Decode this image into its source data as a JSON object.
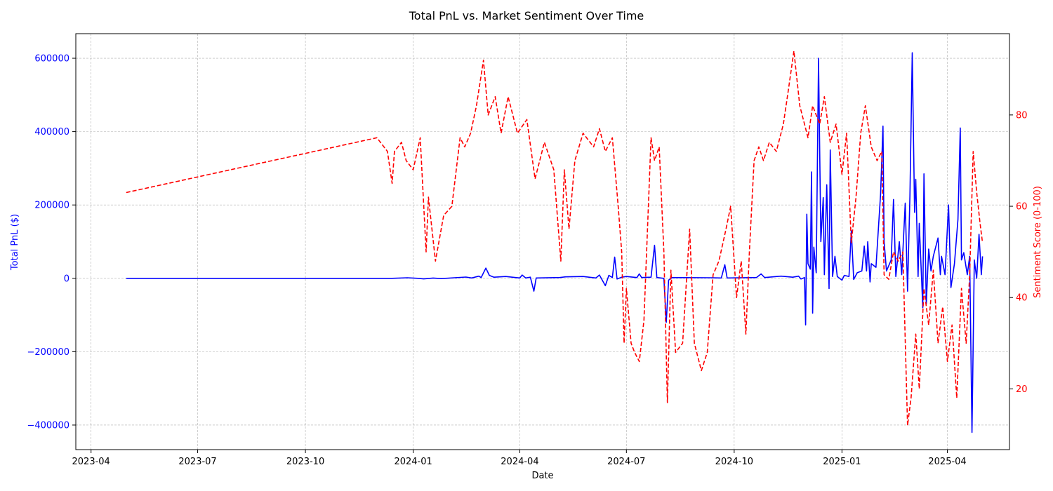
{
  "chart_data": {
    "type": "line",
    "title": "Total PnL vs. Market Sentiment Over Time",
    "xlabel": "Date",
    "ylabel_left": "Total PnL ($)",
    "ylabel_right": "Sentiment Score (0-100)",
    "xlim": [
      "2023-03-19",
      "2025-05-24"
    ],
    "ylim_left": [
      -467000,
      667000
    ],
    "ylim_right": [
      6.7,
      97.8
    ],
    "grid": true,
    "x_ticks": [
      {
        "date": "2023-04-01",
        "label": "2023-04"
      },
      {
        "date": "2023-07-01",
        "label": "2023-07"
      },
      {
        "date": "2023-10-01",
        "label": "2023-10"
      },
      {
        "date": "2024-01-01",
        "label": "2024-01"
      },
      {
        "date": "2024-04-01",
        "label": "2024-04"
      },
      {
        "date": "2024-07-01",
        "label": "2024-07"
      },
      {
        "date": "2024-10-01",
        "label": "2024-10"
      },
      {
        "date": "2025-01-01",
        "label": "2025-01"
      },
      {
        "date": "2025-04-01",
        "label": "2025-04"
      }
    ],
    "y_ticks_left": [
      {
        "value": 600000,
        "label": "600000"
      },
      {
        "value": 400000,
        "label": "400000"
      },
      {
        "value": 200000,
        "label": "200000"
      },
      {
        "value": 0,
        "label": "0"
      },
      {
        "value": -200000,
        "label": "−200000"
      },
      {
        "value": -400000,
        "label": "−400000"
      }
    ],
    "y_ticks_right": [
      {
        "value": 80,
        "label": "80"
      },
      {
        "value": 60,
        "label": "60"
      },
      {
        "value": 40,
        "label": "40"
      },
      {
        "value": 20,
        "label": "20"
      }
    ],
    "series": [
      {
        "axis": "left",
        "color": "#0000ff",
        "style": "solid",
        "points": [
          [
            "2023-05-01",
            0
          ],
          [
            "2023-12-14",
            0
          ],
          [
            "2023-12-27",
            1500
          ],
          [
            "2024-01-05",
            0
          ],
          [
            "2024-01-10",
            -1500
          ],
          [
            "2024-01-18",
            800
          ],
          [
            "2024-01-25",
            -800
          ],
          [
            "2024-02-05",
            1500
          ],
          [
            "2024-02-15",
            3500
          ],
          [
            "2024-02-20",
            1000
          ],
          [
            "2024-02-26",
            6000
          ],
          [
            "2024-02-28",
            2000
          ],
          [
            "2024-03-03",
            28000
          ],
          [
            "2024-03-06",
            8000
          ],
          [
            "2024-03-10",
            3000
          ],
          [
            "2024-03-20",
            5000
          ],
          [
            "2024-04-01",
            1000
          ],
          [
            "2024-04-03",
            9000
          ],
          [
            "2024-04-06",
            1000
          ],
          [
            "2024-04-10",
            3000
          ],
          [
            "2024-04-13",
            -35000
          ],
          [
            "2024-04-15",
            1000
          ],
          [
            "2024-05-05",
            2000
          ],
          [
            "2024-05-10",
            4000
          ],
          [
            "2024-05-25",
            5000
          ],
          [
            "2024-06-05",
            1000
          ],
          [
            "2024-06-08",
            9000
          ],
          [
            "2024-06-13",
            -20000
          ],
          [
            "2024-06-16",
            8000
          ],
          [
            "2024-06-19",
            2000
          ],
          [
            "2024-06-21",
            58000
          ],
          [
            "2024-06-23",
            -2000
          ],
          [
            "2024-06-27",
            3000
          ],
          [
            "2024-07-01",
            5000
          ],
          [
            "2024-07-10",
            2000
          ],
          [
            "2024-07-12",
            12000
          ],
          [
            "2024-07-14",
            2000
          ],
          [
            "2024-07-22",
            3000
          ],
          [
            "2024-07-25",
            90000
          ],
          [
            "2024-07-27",
            2000
          ],
          [
            "2024-08-02",
            0
          ],
          [
            "2024-08-04",
            -120000
          ],
          [
            "2024-08-06",
            -5000
          ],
          [
            "2024-08-09",
            2000
          ],
          [
            "2024-09-10",
            1500
          ],
          [
            "2024-09-20",
            1000
          ],
          [
            "2024-09-23",
            37000
          ],
          [
            "2024-09-25",
            1000
          ],
          [
            "2024-10-20",
            2000
          ],
          [
            "2024-10-24",
            12000
          ],
          [
            "2024-10-27",
            2000
          ],
          [
            "2024-11-10",
            6000
          ],
          [
            "2024-11-20",
            3000
          ],
          [
            "2024-11-25",
            6000
          ],
          [
            "2024-11-27",
            -2000
          ],
          [
            "2024-11-30",
            2000
          ],
          [
            "2024-12-01",
            -127000
          ],
          [
            "2024-12-02",
            175000
          ],
          [
            "2024-12-03",
            40000
          ],
          [
            "2024-12-05",
            25000
          ],
          [
            "2024-12-06",
            290000
          ],
          [
            "2024-12-07",
            -95000
          ],
          [
            "2024-12-08",
            85000
          ],
          [
            "2024-12-10",
            15000
          ],
          [
            "2024-12-12",
            600000
          ],
          [
            "2024-12-14",
            100000
          ],
          [
            "2024-12-16",
            220000
          ],
          [
            "2024-12-17",
            10000
          ],
          [
            "2024-12-19",
            255000
          ],
          [
            "2024-12-21",
            -28000
          ],
          [
            "2024-12-22",
            350000
          ],
          [
            "2024-12-24",
            5000
          ],
          [
            "2024-12-26",
            60000
          ],
          [
            "2024-12-28",
            5000
          ],
          [
            "2025-01-01",
            -5000
          ],
          [
            "2025-01-03",
            8000
          ],
          [
            "2025-01-07",
            5000
          ],
          [
            "2025-01-09",
            130000
          ],
          [
            "2025-01-11",
            -3000
          ],
          [
            "2025-01-14",
            15000
          ],
          [
            "2025-01-18",
            20000
          ],
          [
            "2025-01-20",
            88000
          ],
          [
            "2025-01-22",
            20000
          ],
          [
            "2025-01-23",
            100000
          ],
          [
            "2025-01-25",
            -10000
          ],
          [
            "2025-01-26",
            40000
          ],
          [
            "2025-01-30",
            30000
          ],
          [
            "2025-02-03",
            230000
          ],
          [
            "2025-02-05",
            415000
          ],
          [
            "2025-02-06",
            100000
          ],
          [
            "2025-02-08",
            20000
          ],
          [
            "2025-02-12",
            50000
          ],
          [
            "2025-02-14",
            215000
          ],
          [
            "2025-02-16",
            5000
          ],
          [
            "2025-02-19",
            100000
          ],
          [
            "2025-02-21",
            10000
          ],
          [
            "2025-02-24",
            205000
          ],
          [
            "2025-02-26",
            -35000
          ],
          [
            "2025-02-28",
            225000
          ],
          [
            "2025-03-02",
            615000
          ],
          [
            "2025-03-04",
            180000
          ],
          [
            "2025-03-05",
            270000
          ],
          [
            "2025-03-07",
            5000
          ],
          [
            "2025-03-08",
            150000
          ],
          [
            "2025-03-11",
            -80000
          ],
          [
            "2025-03-12",
            285000
          ],
          [
            "2025-03-14",
            -70000
          ],
          [
            "2025-03-16",
            80000
          ],
          [
            "2025-03-18",
            20000
          ],
          [
            "2025-03-20",
            60000
          ],
          [
            "2025-03-24",
            110000
          ],
          [
            "2025-03-26",
            10000
          ],
          [
            "2025-03-27",
            60000
          ],
          [
            "2025-03-30",
            10000
          ],
          [
            "2025-04-02",
            200000
          ],
          [
            "2025-04-04",
            -25000
          ],
          [
            "2025-04-07",
            40000
          ],
          [
            "2025-04-10",
            160000
          ],
          [
            "2025-04-12",
            410000
          ],
          [
            "2025-04-13",
            50000
          ],
          [
            "2025-04-15",
            70000
          ],
          [
            "2025-04-18",
            10000
          ],
          [
            "2025-04-20",
            60000
          ],
          [
            "2025-04-22",
            -420000
          ],
          [
            "2025-04-24",
            50000
          ],
          [
            "2025-04-26",
            0
          ],
          [
            "2025-04-28",
            120000
          ],
          [
            "2025-04-30",
            10000
          ],
          [
            "2025-05-01",
            60000
          ]
        ]
      },
      {
        "axis": "right",
        "color": "#ff0000",
        "style": "dashed",
        "points": [
          [
            "2023-05-01",
            63
          ],
          [
            "2023-12-01",
            75
          ],
          [
            "2023-12-10",
            72
          ],
          [
            "2023-12-14",
            65
          ],
          [
            "2023-12-16",
            72
          ],
          [
            "2023-12-22",
            74
          ],
          [
            "2023-12-26",
            70
          ],
          [
            "2024-01-01",
            68
          ],
          [
            "2024-01-07",
            75
          ],
          [
            "2024-01-12",
            50
          ],
          [
            "2024-01-14",
            62
          ],
          [
            "2024-01-20",
            48
          ],
          [
            "2024-01-27",
            58
          ],
          [
            "2024-02-03",
            60
          ],
          [
            "2024-02-10",
            75
          ],
          [
            "2024-02-14",
            73
          ],
          [
            "2024-02-19",
            76
          ],
          [
            "2024-02-24",
            82
          ],
          [
            "2024-03-01",
            92
          ],
          [
            "2024-03-05",
            80
          ],
          [
            "2024-03-11",
            84
          ],
          [
            "2024-03-16",
            76
          ],
          [
            "2024-03-22",
            84
          ],
          [
            "2024-03-30",
            76
          ],
          [
            "2024-04-07",
            79
          ],
          [
            "2024-04-14",
            66
          ],
          [
            "2024-04-22",
            74
          ],
          [
            "2024-04-30",
            68
          ],
          [
            "2024-05-06",
            48
          ],
          [
            "2024-05-09",
            68
          ],
          [
            "2024-05-13",
            55
          ],
          [
            "2024-05-18",
            70
          ],
          [
            "2024-05-25",
            76
          ],
          [
            "2024-06-03",
            73
          ],
          [
            "2024-06-08",
            77
          ],
          [
            "2024-06-13",
            72
          ],
          [
            "2024-06-19",
            75
          ],
          [
            "2024-06-24",
            60
          ],
          [
            "2024-06-27",
            50
          ],
          [
            "2024-06-29",
            30
          ],
          [
            "2024-07-01",
            42
          ],
          [
            "2024-07-05",
            30
          ],
          [
            "2024-07-08",
            28
          ],
          [
            "2024-07-12",
            26
          ],
          [
            "2024-07-16",
            35
          ],
          [
            "2024-07-22",
            75
          ],
          [
            "2024-07-25",
            70
          ],
          [
            "2024-07-29",
            73
          ],
          [
            "2024-08-02",
            50
          ],
          [
            "2024-08-05",
            17
          ],
          [
            "2024-08-08",
            46
          ],
          [
            "2024-08-12",
            28
          ],
          [
            "2024-08-18",
            30
          ],
          [
            "2024-08-24",
            55
          ],
          [
            "2024-08-28",
            30
          ],
          [
            "2024-09-03",
            24
          ],
          [
            "2024-09-08",
            28
          ],
          [
            "2024-09-13",
            45
          ],
          [
            "2024-09-18",
            48
          ],
          [
            "2024-09-24",
            55
          ],
          [
            "2024-09-28",
            60
          ],
          [
            "2024-10-03",
            40
          ],
          [
            "2024-10-07",
            48
          ],
          [
            "2024-10-11",
            32
          ],
          [
            "2024-10-14",
            50
          ],
          [
            "2024-10-18",
            70
          ],
          [
            "2024-10-22",
            73
          ],
          [
            "2024-10-26",
            70
          ],
          [
            "2024-10-31",
            74
          ],
          [
            "2024-11-06",
            72
          ],
          [
            "2024-11-12",
            78
          ],
          [
            "2024-11-16",
            85
          ],
          [
            "2024-11-21",
            94
          ],
          [
            "2024-11-26",
            82
          ],
          [
            "2024-12-03",
            75
          ],
          [
            "2024-12-07",
            82
          ],
          [
            "2024-12-13",
            78
          ],
          [
            "2024-12-17",
            84
          ],
          [
            "2024-12-22",
            74
          ],
          [
            "2024-12-27",
            78
          ],
          [
            "2025-01-01",
            67
          ],
          [
            "2025-01-05",
            76
          ],
          [
            "2025-01-09",
            52
          ],
          [
            "2025-01-13",
            62
          ],
          [
            "2025-01-17",
            76
          ],
          [
            "2025-01-21",
            82
          ],
          [
            "2025-01-26",
            73
          ],
          [
            "2025-01-31",
            70
          ],
          [
            "2025-02-04",
            72
          ],
          [
            "2025-02-06",
            45
          ],
          [
            "2025-02-10",
            44
          ],
          [
            "2025-02-14",
            50
          ],
          [
            "2025-02-18",
            48
          ],
          [
            "2025-02-22",
            50
          ],
          [
            "2025-02-26",
            12
          ],
          [
            "2025-03-01",
            18
          ],
          [
            "2025-03-05",
            32
          ],
          [
            "2025-03-08",
            20
          ],
          [
            "2025-03-12",
            42
          ],
          [
            "2025-03-16",
            34
          ],
          [
            "2025-03-20",
            46
          ],
          [
            "2025-03-24",
            30
          ],
          [
            "2025-03-28",
            38
          ],
          [
            "2025-04-01",
            26
          ],
          [
            "2025-04-05",
            34
          ],
          [
            "2025-04-09",
            18
          ],
          [
            "2025-04-13",
            42
          ],
          [
            "2025-04-17",
            30
          ],
          [
            "2025-04-20",
            45
          ],
          [
            "2025-04-23",
            72
          ],
          [
            "2025-04-26",
            63
          ],
          [
            "2025-04-29",
            56
          ],
          [
            "2025-05-01",
            52
          ]
        ]
      }
    ]
  }
}
